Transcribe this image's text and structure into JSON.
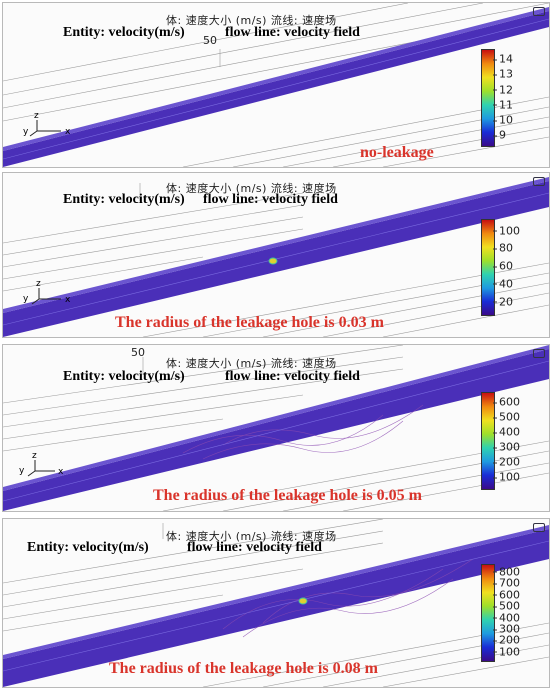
{
  "panels": [
    {
      "cn_title": "体: 速度大小 (m/s)  流线: 速度场",
      "entity_label": "Entity: velocity(m/s)",
      "flow_label": "flow line: velocity field",
      "scale_tick": "50",
      "caption": "no-leakage",
      "legend_ticks": [
        "14",
        "13",
        "12",
        "11",
        "10",
        "9"
      ],
      "legend_min": 8.3,
      "legend_max": 14.6,
      "axis": {
        "x": "x",
        "y": "y",
        "z": "z"
      }
    },
    {
      "cn_title": "体: 速度大小 (m/s)  流线: 速度场",
      "entity_label": "Entity: velocity(m/s)",
      "flow_label": "flow line: velocity field",
      "caption": "The radius of the leakage hole is 0.03 m",
      "legend_ticks": [
        "100",
        "80",
        "60",
        "40",
        "20"
      ],
      "legend_min": 5,
      "legend_max": 112,
      "axis": {
        "x": "x",
        "y": "y",
        "z": "z"
      }
    },
    {
      "cn_title": "体: 速度大小 (m/s)  流线: 速度场",
      "entity_label": "Entity: velocity(m/s)",
      "flow_label": "flow line: velocity field",
      "scale_tick": "50",
      "caption": "The radius of the leakage hole is 0.05 m",
      "legend_ticks": [
        "600",
        "500",
        "400",
        "300",
        "200",
        "100"
      ],
      "legend_min": 20,
      "legend_max": 660,
      "axis": {
        "x": "x",
        "y": "y",
        "z": "z"
      }
    },
    {
      "cn_title": "体: 速度大小 (m/s)  流线: 速度场",
      "entity_label": "Entity: velocity(m/s)",
      "flow_label": "flow line: velocity field",
      "caption": "The radius of the leakage hole is 0.08 m",
      "legend_ticks": [
        "800",
        "700",
        "600",
        "500",
        "400",
        "300",
        "200",
        "100"
      ],
      "legend_min": 20,
      "legend_max": 860,
      "axis": {
        "x": "x",
        "y": "y",
        "z": "z"
      }
    }
  ],
  "colors": {
    "pipe": "#4a2fb8",
    "pipe_dark": "#2a1a7a",
    "caption": "#d9342b",
    "legend_gradient": [
      "#3a0a8a",
      "#1a2cd6",
      "#1e9be0",
      "#2fd2b0",
      "#9ee02a",
      "#f0e020",
      "#f08a10",
      "#c81010"
    ]
  }
}
